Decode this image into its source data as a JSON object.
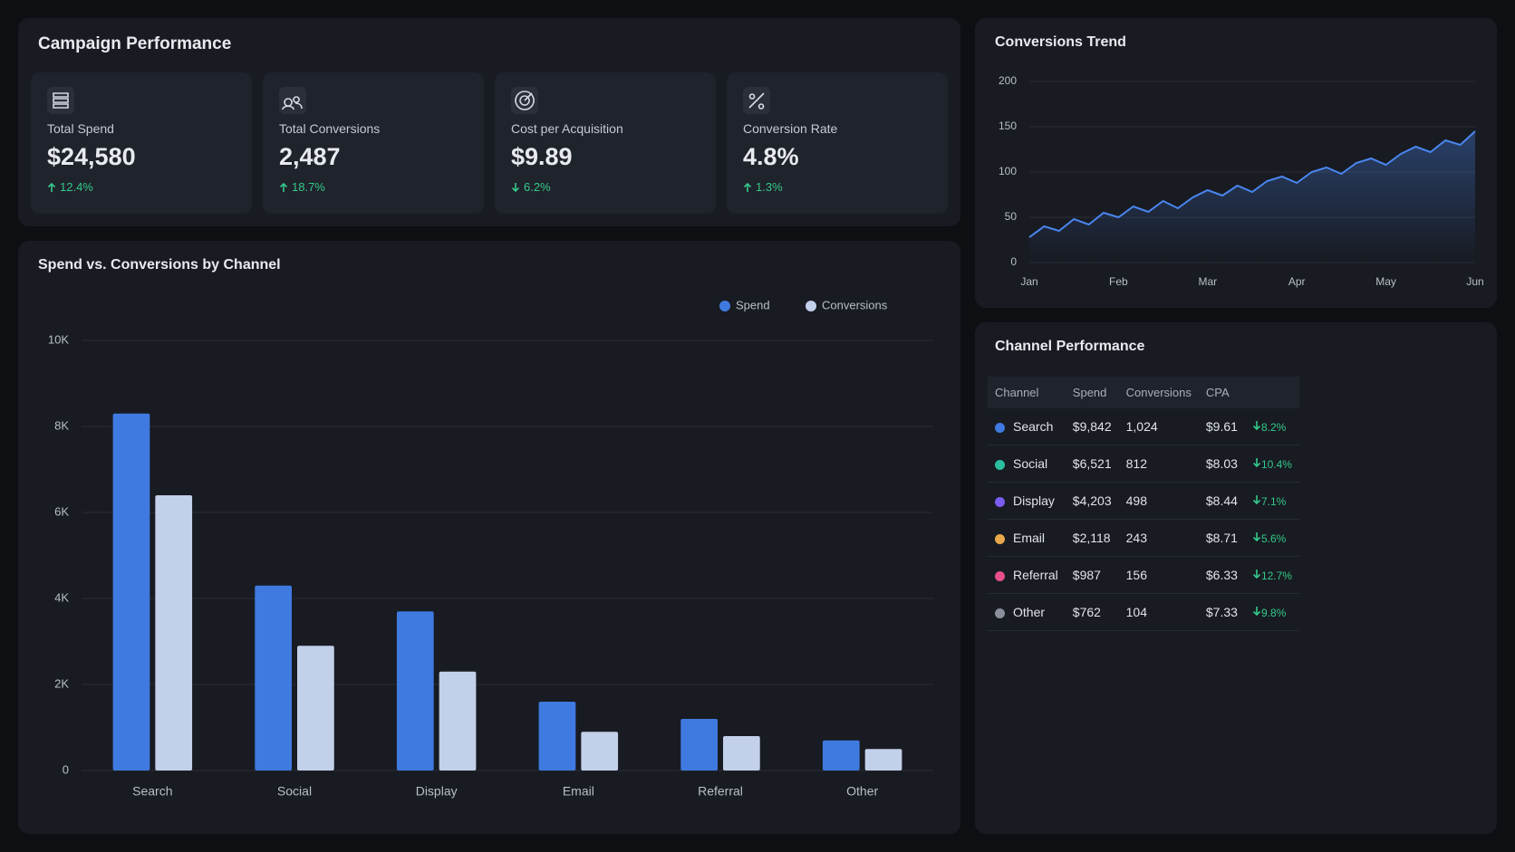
{
  "header": {
    "title": "Campaign Performance"
  },
  "kpis": [
    {
      "label": "Total Spend",
      "value": "$24,580",
      "change": "12.4%",
      "direction": "up"
    },
    {
      "label": "Total Conversions",
      "value": "2,487",
      "change": "18.7%",
      "direction": "up"
    },
    {
      "label": "Cost per Acquisition",
      "value": "$9.89",
      "change": "6.2%",
      "direction": "down"
    },
    {
      "label": "Conversion Rate",
      "value": "4.8%",
      "change": "1.3%",
      "direction": "up"
    }
  ],
  "chart_data": [
    {
      "type": "bar",
      "title": "Spend vs. Conversions by Channel",
      "categories": [
        "Search",
        "Social",
        "Display",
        "Email",
        "Referral",
        "Other"
      ],
      "series": [
        {
          "name": "Spend",
          "color": "#3f7ae0",
          "values": [
            8300,
            4300,
            3700,
            1600,
            1200,
            700
          ]
        },
        {
          "name": "Conversions",
          "color": "#c3d0ea",
          "values": [
            6400,
            2900,
            2300,
            900,
            800,
            500
          ]
        }
      ],
      "ylim": [
        0,
        10000
      ],
      "yticks": [
        {
          "value": 0,
          "label": "0"
        },
        {
          "value": 2000,
          "label": "2K"
        },
        {
          "value": 4000,
          "label": "4K"
        },
        {
          "value": 6000,
          "label": "6K"
        },
        {
          "value": 8000,
          "label": "8K"
        },
        {
          "value": 10000,
          "label": "10K"
        }
      ],
      "grid": true,
      "legend": "top-right"
    },
    {
      "type": "line",
      "title": "Conversions Trend",
      "color": "#4a86f0",
      "categories": [
        "Jan",
        null,
        null,
        null,
        null,
        null,
        "Feb",
        null,
        null,
        null,
        null,
        null,
        "Mar",
        null,
        null,
        null,
        null,
        null,
        "Apr",
        null,
        null,
        null,
        null,
        null,
        "May",
        null,
        null,
        null,
        null,
        null,
        "Jun"
      ],
      "values": [
        28,
        40,
        35,
        48,
        42,
        55,
        50,
        62,
        56,
        68,
        60,
        72,
        80,
        74,
        85,
        78,
        90,
        95,
        88,
        100,
        105,
        98,
        110,
        115,
        108,
        120,
        128,
        122,
        135,
        130,
        145
      ],
      "ylim": [
        0,
        200
      ],
      "yticks": [
        0,
        50,
        100,
        150,
        200
      ],
      "grid": true
    }
  ],
  "table": {
    "title": "Channel Performance",
    "columns": [
      "Channel",
      "Spend",
      "Conversions",
      "CPA"
    ],
    "rows": [
      {
        "color": "#3f7ae0",
        "cells": [
          "Search",
          "$9,842",
          "1,024",
          "$9.61"
        ],
        "change": "8.2%"
      },
      {
        "color": "#2bbfa0",
        "cells": [
          "Social",
          "$6,521",
          "812",
          "$8.03"
        ],
        "change": "10.4%"
      },
      {
        "color": "#7b5cf0",
        "cells": [
          "Display",
          "$4,203",
          "498",
          "$8.44"
        ],
        "change": "7.1%"
      },
      {
        "color": "#e8a94a",
        "cells": [
          "Email",
          "$2,118",
          "243",
          "$8.71"
        ],
        "change": "5.6%"
      },
      {
        "color": "#e8508a",
        "cells": [
          "Referral",
          "$987",
          "156",
          "$6.33"
        ],
        "change": "12.7%"
      },
      {
        "color": "#8a8f9a",
        "cells": [
          "Other",
          "$762",
          "104",
          "$7.33"
        ],
        "change": "9.8%"
      }
    ]
  }
}
